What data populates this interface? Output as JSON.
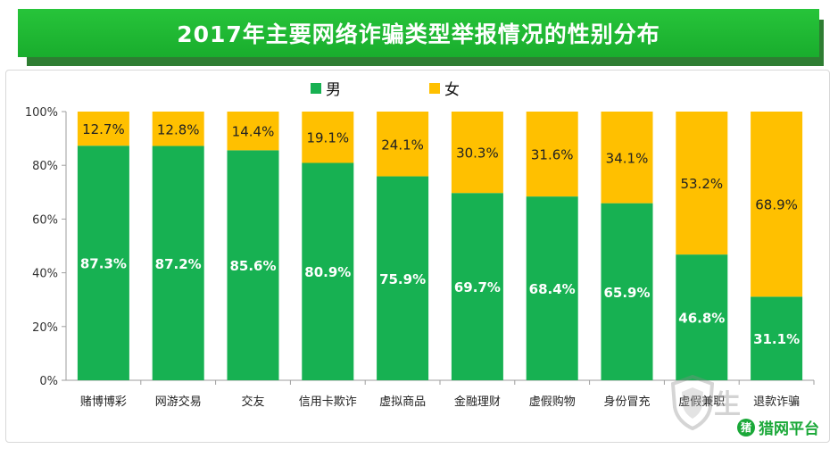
{
  "title": "2017年主要网络诈骗类型举报情况的性别分布",
  "colors": {
    "male": "#17b152",
    "female": "#ffc000",
    "title_bg": "#1fb332"
  },
  "chart_data": {
    "type": "bar",
    "stacked": true,
    "categories": [
      "赌博博彩",
      "网游交易",
      "交友",
      "信用卡欺诈",
      "虚拟商品",
      "金融理财",
      "虚假购物",
      "身份冒充",
      "虚假兼职",
      "退款诈骗"
    ],
    "series": [
      {
        "name": "男",
        "values": [
          87.3,
          87.2,
          85.6,
          80.9,
          75.9,
          69.7,
          68.4,
          65.9,
          46.8,
          31.1
        ],
        "labels": [
          "87.3%",
          "87.2%",
          "85.6%",
          "80.9%",
          "75.9%",
          "69.7%",
          "68.4%",
          "65.9%",
          "46.8%",
          "31.1%"
        ]
      },
      {
        "name": "女",
        "values": [
          12.7,
          12.8,
          14.4,
          19.1,
          24.1,
          30.3,
          31.6,
          34.1,
          53.2,
          68.9
        ],
        "labels": [
          "12.7%",
          "12.8%",
          "14.4%",
          "19.1%",
          "24.1%",
          "30.3%",
          "31.6%",
          "34.1%",
          "53.2%",
          "68.9%"
        ]
      }
    ],
    "y_ticks": [
      "0%",
      "20%",
      "40%",
      "60%",
      "80%",
      "100%"
    ],
    "ylim": [
      0,
      100
    ],
    "legend_position": "top-center",
    "grid": false
  },
  "watermark": {
    "text": "生",
    "logo_mark": "猪",
    "logo_text": "猎网平台"
  }
}
